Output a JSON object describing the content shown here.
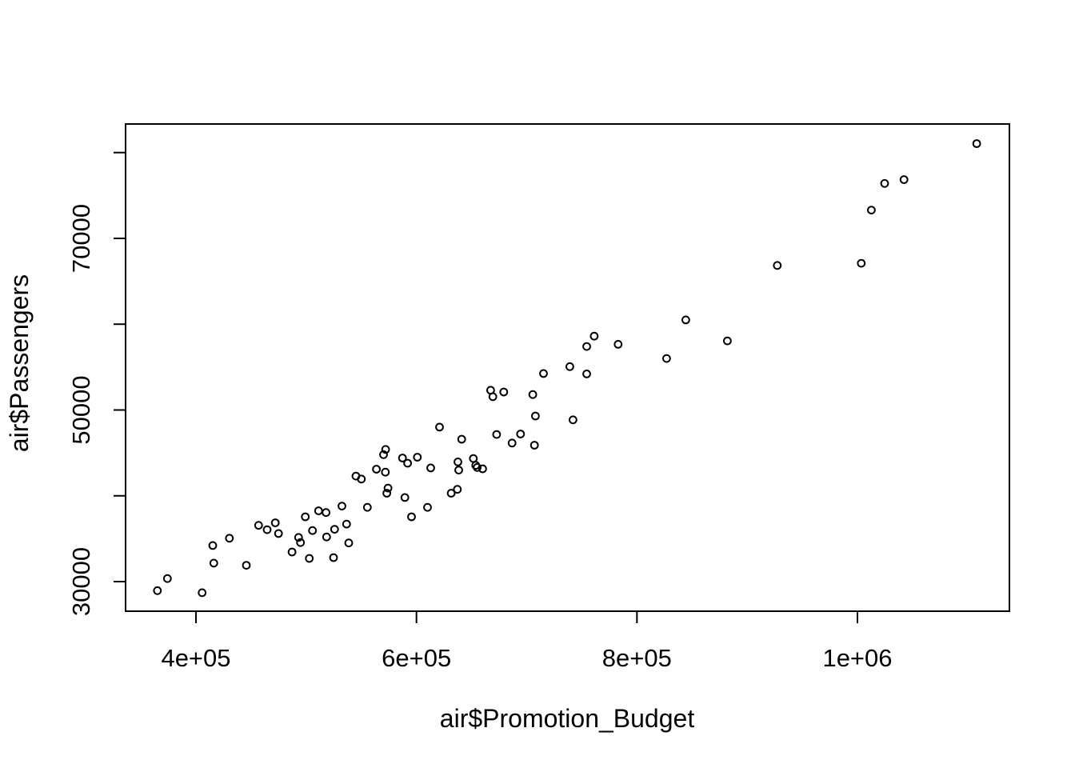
{
  "chart_data": {
    "type": "scatter",
    "title": "",
    "xlabel": "air$Promotion_Budget",
    "ylabel": "air$Passengers",
    "marker": "open-circle",
    "marker_color": "#000000",
    "background": "#ffffff",
    "grid": false,
    "legend": "none",
    "xlim": [
      336150,
      1137850
    ],
    "ylim": [
      26550,
      83330
    ],
    "x_ticks": [
      {
        "value": 400000,
        "label": "4e+05"
      },
      {
        "value": 600000,
        "label": "6e+05"
      },
      {
        "value": 800000,
        "label": "8e+05"
      },
      {
        "value": 1000000,
        "label": "1e+06"
      }
    ],
    "y_ticks": [
      {
        "value": 30000,
        "label": "30000"
      },
      {
        "value": 40000,
        "label": ""
      },
      {
        "value": 50000,
        "label": "50000"
      },
      {
        "value": 60000,
        "label": ""
      },
      {
        "value": 70000,
        "label": "70000"
      },
      {
        "value": 80000,
        "label": ""
      }
    ],
    "points": [
      [
        365000,
        28950
      ],
      [
        374100,
        30350
      ],
      [
        405600,
        28700
      ],
      [
        415200,
        34200
      ],
      [
        416200,
        32150
      ],
      [
        430300,
        35050
      ],
      [
        445700,
        31900
      ],
      [
        456800,
        36550
      ],
      [
        464600,
        36050
      ],
      [
        472000,
        36850
      ],
      [
        474900,
        35600
      ],
      [
        487100,
        33450
      ],
      [
        493100,
        35150
      ],
      [
        494800,
        34550
      ],
      [
        499200,
        37550
      ],
      [
        502800,
        32700
      ],
      [
        505700,
        35950
      ],
      [
        511200,
        38250
      ],
      [
        518000,
        38050
      ],
      [
        518500,
        35200
      ],
      [
        524800,
        32800
      ],
      [
        525700,
        36100
      ],
      [
        532400,
        38800
      ],
      [
        536600,
        36700
      ],
      [
        538600,
        34500
      ],
      [
        545100,
        42300
      ],
      [
        550000,
        41950
      ],
      [
        555500,
        38650
      ],
      [
        563700,
        43100
      ],
      [
        570100,
        44800
      ],
      [
        572000,
        45400
      ],
      [
        571800,
        42750
      ],
      [
        574200,
        40900
      ],
      [
        573100,
        40300
      ],
      [
        587300,
        44400
      ],
      [
        592000,
        43800
      ],
      [
        600800,
        44500
      ],
      [
        589500,
        39800
      ],
      [
        595500,
        37550
      ],
      [
        610000,
        38650
      ],
      [
        612900,
        43250
      ],
      [
        620900,
        48000
      ],
      [
        631500,
        40300
      ],
      [
        637100,
        40750
      ],
      [
        641000,
        46600
      ],
      [
        637600,
        43950
      ],
      [
        638300,
        43000
      ],
      [
        651600,
        44350
      ],
      [
        653800,
        43550
      ],
      [
        655100,
        43300
      ],
      [
        660000,
        43150
      ],
      [
        667300,
        52300
      ],
      [
        669300,
        51550
      ],
      [
        672700,
        47150
      ],
      [
        679200,
        52100
      ],
      [
        686700,
        46150
      ],
      [
        694400,
        47200
      ],
      [
        705500,
        51800
      ],
      [
        707000,
        45900
      ],
      [
        707900,
        49300
      ],
      [
        715200,
        54250
      ],
      [
        739100,
        55050
      ],
      [
        742000,
        48850
      ],
      [
        754400,
        57400
      ],
      [
        754400,
        54200
      ],
      [
        761200,
        58600
      ],
      [
        782900,
        57650
      ],
      [
        826900,
        56000
      ],
      [
        844300,
        60500
      ],
      [
        882000,
        58050
      ],
      [
        927300,
        66850
      ],
      [
        1003500,
        67100
      ],
      [
        1012600,
        73300
      ],
      [
        1024700,
        76400
      ],
      [
        1042200,
        76850
      ],
      [
        1108200,
        81050
      ]
    ]
  }
}
